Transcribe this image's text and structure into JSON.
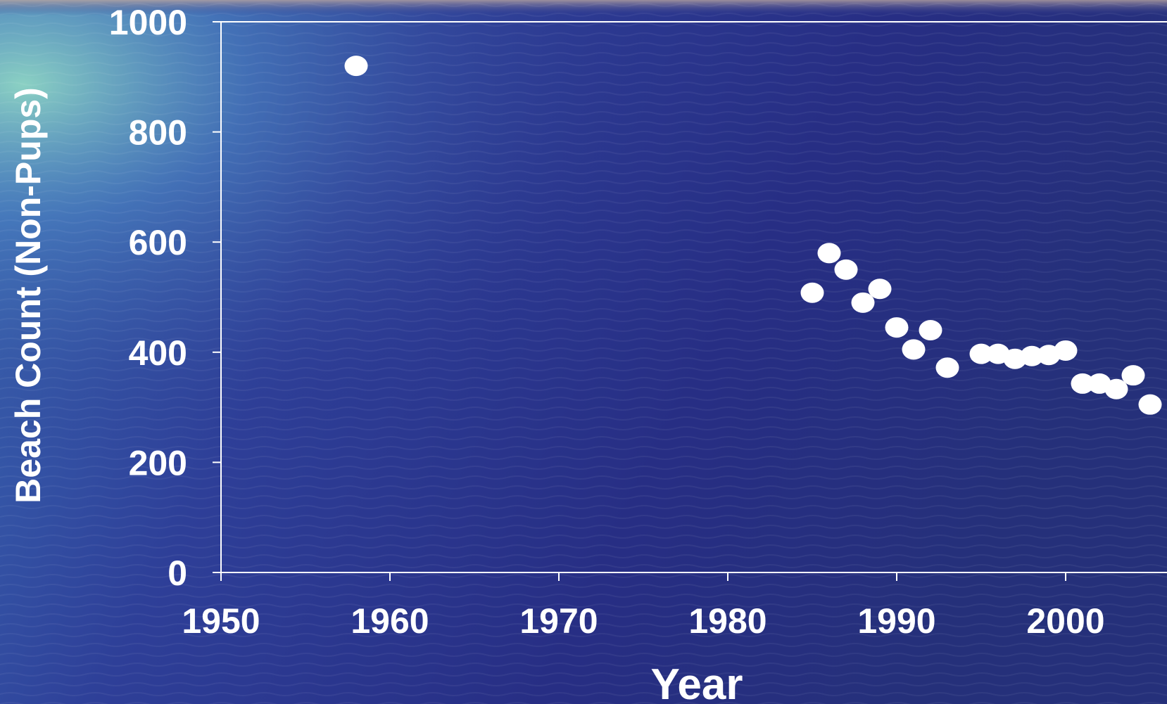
{
  "chart_data": {
    "type": "scatter",
    "title": "",
    "xlabel": "Year",
    "ylabel": "Beach Count (Non-Pups)",
    "xlim": [
      1950,
      2006
    ],
    "ylim": [
      0,
      1000
    ],
    "x_ticks": [
      1950,
      1960,
      1970,
      1980,
      1990,
      2000
    ],
    "y_ticks": [
      0,
      200,
      400,
      600,
      800,
      1000
    ],
    "grid": false,
    "legend": "none",
    "marker_color": "#ffffff",
    "series": [
      {
        "points": [
          {
            "x": 1958,
            "y": 920
          },
          {
            "x": 1985,
            "y": 508
          },
          {
            "x": 1986,
            "y": 580
          },
          {
            "x": 1987,
            "y": 550
          },
          {
            "x": 1988,
            "y": 490
          },
          {
            "x": 1989,
            "y": 515
          },
          {
            "x": 1990,
            "y": 445
          },
          {
            "x": 1991,
            "y": 405
          },
          {
            "x": 1992,
            "y": 440
          },
          {
            "x": 1993,
            "y": 372
          },
          {
            "x": 1995,
            "y": 397
          },
          {
            "x": 1996,
            "y": 397
          },
          {
            "x": 1997,
            "y": 388
          },
          {
            "x": 1998,
            "y": 393
          },
          {
            "x": 1999,
            "y": 395
          },
          {
            "x": 2000,
            "y": 403
          },
          {
            "x": 2001,
            "y": 343
          },
          {
            "x": 2002,
            "y": 343
          },
          {
            "x": 2003,
            "y": 333
          },
          {
            "x": 2004,
            "y": 358
          },
          {
            "x": 2005,
            "y": 305
          }
        ]
      }
    ]
  },
  "background": {
    "description_colors": [
      "#7fc7b8",
      "#3a5db0",
      "#2a2f86",
      "#1f2470"
    ]
  }
}
